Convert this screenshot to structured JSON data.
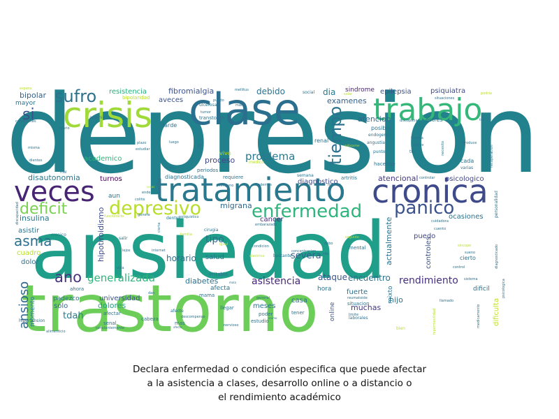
{
  "chart_data": {
    "type": "wordcloud",
    "title_lines": [
      "Declara enfermedad o condición especifica que puede afectar",
      "a la asistencia a clases, desarrollo online o a distancio o",
      "el rendimiento académico"
    ],
    "colormap": "viridis",
    "words": [
      {
        "text": "depresion",
        "color": "#21818c"
      },
      {
        "text": "ansiedad",
        "color": "#1f9e89"
      },
      {
        "text": "trastorno",
        "color": "#6ccd59"
      },
      {
        "text": "tratamiento",
        "color": "#2a788e"
      },
      {
        "text": "clase",
        "color": "#2b6f8e"
      },
      {
        "text": "trabajo",
        "color": "#35b779"
      },
      {
        "text": "crisis",
        "color": "#a0da39"
      },
      {
        "text": "cronica",
        "color": "#3e4a89"
      },
      {
        "text": "veces",
        "color": "#482475"
      },
      {
        "text": "depresivo",
        "color": "#b8de29"
      },
      {
        "text": "enfermedad",
        "color": "#2fb47c"
      },
      {
        "text": "panico",
        "color": "#3b528b"
      },
      {
        "text": "deficit",
        "color": "#7ad151"
      },
      {
        "text": "sufro",
        "color": "#2c728e"
      },
      {
        "text": "tiempo",
        "color": "#2c728e"
      },
      {
        "text": "asma",
        "color": "#2d708e"
      },
      {
        "text": "si",
        "color": "#3b528b"
      },
      {
        "text": "ano",
        "color": "#46337e"
      },
      {
        "text": "generalizada",
        "color": "#2fb47c"
      },
      {
        "text": "ansioso",
        "color": "#31688e"
      },
      {
        "text": "problema",
        "color": "#2a788e"
      },
      {
        "text": "tipo",
        "color": "#2d708e"
      },
      {
        "text": "asistencia",
        "color": "#482878"
      },
      {
        "text": "rendimiento",
        "color": "#46317e"
      },
      {
        "text": "severa",
        "color": "#355f8d"
      },
      {
        "text": "horario",
        "color": "#2c728e"
      },
      {
        "text": "tdah",
        "color": "#287d8e"
      },
      {
        "text": "muchas",
        "color": "#453781"
      },
      {
        "text": "encuentro",
        "color": "#2c728e"
      },
      {
        "text": "ataque",
        "color": "#39558c"
      },
      {
        "text": "diabetes",
        "color": "#2c728e"
      },
      {
        "text": "migrana",
        "color": "#31688e"
      },
      {
        "text": "dolores",
        "color": "#20a386"
      },
      {
        "text": "proceso",
        "color": "#404688"
      },
      {
        "text": "debido",
        "color": "#2c728e"
      },
      {
        "text": "dia",
        "color": "#2a788e"
      },
      {
        "text": "examenes",
        "color": "#355f8d"
      },
      {
        "text": "epilepsia",
        "color": "#3b528b"
      },
      {
        "text": "psiquiatra",
        "color": "#3e4a89"
      },
      {
        "text": "sindrome",
        "color": "#482475"
      },
      {
        "text": "atencion",
        "color": "#31688e"
      },
      {
        "text": "diagnostico",
        "color": "#3e4a89"
      },
      {
        "text": "atencional",
        "color": "#443983"
      },
      {
        "text": "psicologico",
        "color": "#404688"
      },
      {
        "text": "insulina",
        "color": "#2a788e"
      },
      {
        "text": "bipolar",
        "color": "#355f8d"
      },
      {
        "text": "mayor",
        "color": "#2c728e"
      },
      {
        "text": "fibromialgia",
        "color": "#3b528b"
      },
      {
        "text": "resistencia",
        "color": "#29af7f"
      },
      {
        "text": "aveces",
        "color": "#3b528b"
      },
      {
        "text": "academico",
        "color": "#2fb47c"
      },
      {
        "text": "disautonomia",
        "color": "#2a788e"
      },
      {
        "text": "turnos",
        "color": "#440154"
      },
      {
        "text": "hipotiroidismo",
        "color": "#3e4a89"
      },
      {
        "text": "cancer",
        "color": "#482878"
      },
      {
        "text": "ocasiones",
        "color": "#2c728e"
      },
      {
        "text": "actualmente",
        "color": "#2c728e"
      },
      {
        "text": "controles",
        "color": "#3b528b"
      },
      {
        "text": "puedo",
        "color": "#404688"
      },
      {
        "text": "cuadro",
        "color": "#b8de29"
      },
      {
        "text": "asistir",
        "color": "#2c728e"
      },
      {
        "text": "dolor",
        "color": "#2c728e"
      },
      {
        "text": "salud",
        "color": "#2c728e"
      },
      {
        "text": "afecta",
        "color": "#2c728e"
      },
      {
        "text": "universidad",
        "color": "#3b528b"
      },
      {
        "text": "solo",
        "color": "#31688e"
      },
      {
        "text": "momento",
        "color": "#2c728e"
      },
      {
        "text": "casa",
        "color": "#2c728e"
      },
      {
        "text": "fuerte",
        "color": "#2c728e"
      },
      {
        "text": "hijo",
        "color": "#2c728e"
      },
      {
        "text": "mixto",
        "color": "#2c728e"
      },
      {
        "text": "meses",
        "color": "#2c728e"
      },
      {
        "text": "online",
        "color": "#3b528b"
      },
      {
        "text": "hora",
        "color": "#2c728e"
      },
      {
        "text": "dificil",
        "color": "#2c728e"
      },
      {
        "text": "dificulta",
        "color": "#c2df23"
      },
      {
        "text": "padezco",
        "color": "#2c728e"
      },
      {
        "text": "ahora",
        "color": "#2c728e"
      },
      {
        "text": "vivo",
        "color": "#c2df23"
      },
      {
        "text": "aun",
        "color": "#2c728e"
      },
      {
        "text": "ir",
        "color": "#2c728e"
      },
      {
        "text": "posible",
        "color": "#2c728e"
      },
      {
        "text": "estres",
        "color": "#2c728e"
      },
      {
        "text": "cada",
        "color": "#2c728e"
      },
      {
        "text": "varias",
        "color": "#2c728e"
      },
      {
        "text": "cierto",
        "color": "#2c728e"
      },
      {
        "text": "mental",
        "color": "#2c728e"
      },
      {
        "text": "renal",
        "color": "#2c728e"
      },
      {
        "text": "artritis",
        "color": "#2c728e"
      },
      {
        "text": "hacerme",
        "color": "#2c728e"
      },
      {
        "text": "periodos",
        "color": "#2c728e"
      },
      {
        "text": "requiere",
        "color": "#2c728e"
      },
      {
        "text": "diagnosticada",
        "color": "#2c728e"
      },
      {
        "text": "cirugia",
        "color": "#2c728e"
      },
      {
        "text": "tarde",
        "color": "#2c728e"
      },
      {
        "text": "transtorno",
        "color": "#2c728e"
      },
      {
        "text": "situacion",
        "color": "#2c728e"
      },
      {
        "text": "tener",
        "color": "#2c728e"
      },
      {
        "text": "poder",
        "color": "#2c728e"
      },
      {
        "text": "irritable",
        "color": "#2c728e"
      },
      {
        "text": "mama",
        "color": "#2c728e"
      },
      {
        "text": "afectar",
        "color": "#2c728e"
      },
      {
        "text": "cabeza",
        "color": "#2c728e"
      },
      {
        "text": "mas",
        "color": "#2c728e"
      },
      {
        "text": "estudio",
        "color": "#2c728e"
      },
      {
        "text": "bastante",
        "color": "#2c728e"
      },
      {
        "text": "llegar",
        "color": "#2c728e"
      },
      {
        "text": "afecte",
        "color": "#2c728e"
      },
      {
        "text": "senal",
        "color": "#2c728e"
      },
      {
        "text": "anemia",
        "color": "#2c728e"
      },
      {
        "text": "bipolaridad",
        "color": "#b8de29"
      },
      {
        "text": "medico",
        "color": "#b8de29"
      },
      {
        "text": "endogena",
        "color": "#2c728e"
      },
      {
        "text": "angustia",
        "color": "#2c728e"
      },
      {
        "text": "punto",
        "color": "#2c728e"
      },
      {
        "text": "tlp",
        "color": "#2c728e"
      },
      {
        "text": "dentro",
        "color": "#2c728e"
      },
      {
        "text": "salir",
        "color": "#2c728e"
      },
      {
        "text": "social",
        "color": "#2c728e"
      },
      {
        "text": "semana",
        "color": "#2c728e"
      },
      {
        "text": "plazo",
        "color": "#2c728e"
      },
      {
        "text": "luego",
        "color": "#2c728e"
      },
      {
        "text": "ulcerosa",
        "color": "#2c728e"
      },
      {
        "text": "tumor",
        "color": "#2c728e"
      },
      {
        "text": "colitis",
        "color": "#2c728e"
      },
      {
        "text": "lejos",
        "color": "#2c728e"
      },
      {
        "text": "internet",
        "color": "#2c728e"
      },
      {
        "text": "vida",
        "color": "#2c728e"
      },
      {
        "text": "hipertension",
        "color": "#2c728e"
      },
      {
        "text": "cronico",
        "color": "#2c728e"
      },
      {
        "text": "mellitus",
        "color": "#2c728e"
      },
      {
        "text": "sistema",
        "color": "#2c728e"
      },
      {
        "text": "medicamento",
        "color": "#2c728e"
      },
      {
        "text": "condicion",
        "color": "#2c728e"
      },
      {
        "text": "tca",
        "color": "#2c728e"
      },
      {
        "text": "ende",
        "color": "#2c728e"
      },
      {
        "text": "controlar",
        "color": "#2c728e"
      },
      {
        "text": "estudiar",
        "color": "#2c728e"
      },
      {
        "text": "ovario",
        "color": "#2c728e"
      },
      {
        "text": "misma",
        "color": "#2c728e"
      },
      {
        "text": "recuperacion",
        "color": "#2c728e"
      },
      {
        "text": "personalidad",
        "color": "#2c728e"
      },
      {
        "text": "diagnosticado",
        "color": "#2c728e"
      },
      {
        "text": "cuento",
        "color": "#2c728e"
      },
      {
        "text": "control",
        "color": "#2c728e"
      },
      {
        "text": "llamado",
        "color": "#2c728e"
      },
      {
        "text": "psicologica",
        "color": "#2c728e"
      },
      {
        "text": "laborales",
        "color": "#2c728e"
      },
      {
        "text": "bien",
        "color": "#b8de29"
      },
      {
        "text": "reumatoide",
        "color": "#2c728e"
      },
      {
        "text": "general",
        "color": "#2c728e"
      },
      {
        "text": "animo",
        "color": "#2c728e"
      },
      {
        "text": "nervioso",
        "color": "#2c728e"
      },
      {
        "text": "dan",
        "color": "#2c728e"
      },
      {
        "text": "constantemente",
        "color": "#2c728e"
      },
      {
        "text": "descompenso",
        "color": "#2c728e"
      },
      {
        "text": "alimenticio",
        "color": "#2c728e"
      },
      {
        "text": "discapacidad",
        "color": "#2c728e"
      },
      {
        "text": "condiciones",
        "color": "#2c728e"
      },
      {
        "text": "espera",
        "color": "#b8de29"
      },
      {
        "text": "mal",
        "color": "#2c728e"
      },
      {
        "text": "dientes",
        "color": "#2c728e"
      },
      {
        "text": "seguido",
        "color": "#b8de29"
      },
      {
        "text": "podria",
        "color": "#b8de29"
      },
      {
        "text": "situaciones",
        "color": "#2c728e"
      },
      {
        "text": "discopatia",
        "color": "#2c728e"
      },
      {
        "text": "terapia",
        "color": "#2c728e"
      },
      {
        "text": "grave",
        "color": "#2c728e"
      },
      {
        "text": "produce",
        "color": "#2c728e"
      },
      {
        "text": "necesito",
        "color": "#2c728e"
      },
      {
        "text": "cuidadora",
        "color": "#2c728e"
      },
      {
        "text": "sincope",
        "color": "#b8de29"
      },
      {
        "text": "sueno",
        "color": "#2c728e"
      },
      {
        "text": "concentracion",
        "color": "#2c728e"
      },
      {
        "text": "familia",
        "color": "#b8de29"
      },
      {
        "text": "funcionario",
        "color": "#b8de29"
      },
      {
        "text": "genera",
        "color": "#2c728e"
      },
      {
        "text": "cierta",
        "color": "#2c728e"
      },
      {
        "text": "poliquistico",
        "color": "#2c728e"
      },
      {
        "text": "embarazada",
        "color": "#2c728e"
      },
      {
        "text": "ninguno",
        "color": "#2c728e"
      },
      {
        "text": "ademas",
        "color": "#2c728e"
      },
      {
        "text": "manejo",
        "color": "#2c728e"
      },
      {
        "text": "gran",
        "color": "#2c728e"
      },
      {
        "text": "raso",
        "color": "#2c728e"
      },
      {
        "text": "igual",
        "color": "#b8de29"
      },
      {
        "text": "mano",
        "color": "#2c728e"
      },
      {
        "text": "puedo",
        "color": "#2c728e"
      },
      {
        "text": "mala",
        "color": "#2c728e"
      },
      {
        "text": "limite",
        "color": "#2c728e"
      },
      {
        "text": "electrico",
        "color": "#b8de29"
      },
      {
        "text": "debo",
        "color": "#2c728e"
      },
      {
        "text": "tde",
        "color": "#2c728e"
      },
      {
        "text": "hipermovilidad",
        "color": "#b8de29"
      },
      {
        "text": "uso",
        "color": "#2c728e"
      },
      {
        "text": "solar",
        "color": "#b8de29"
      },
      {
        "text": "enfocarme",
        "color": "#b8de29"
      },
      {
        "text": "cosas",
        "color": "#b8de29"
      },
      {
        "text": "afecto",
        "color": "#2c728e"
      }
    ]
  }
}
